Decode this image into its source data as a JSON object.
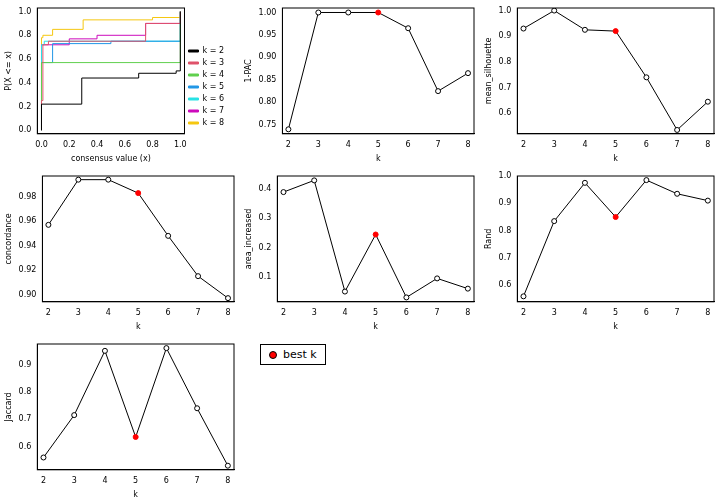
{
  "chart_data": [
    {
      "type": "line",
      "x_label": "consensus value (x)",
      "y_label": "P(X <= x)",
      "grid": false,
      "legend": "right",
      "xlim": [
        -0.03,
        1.03
      ],
      "ylim": [
        -0.03,
        1.03
      ],
      "xticks": [
        {
          "value": 0,
          "label": "0.0"
        },
        {
          "value": 0.2,
          "label": "0.2"
        },
        {
          "value": 0.4,
          "label": "0.4"
        },
        {
          "value": 0.6,
          "label": "0.6"
        },
        {
          "value": 0.8,
          "label": "0.8"
        },
        {
          "value": 1,
          "label": "1.0"
        }
      ],
      "yticks": [
        {
          "value": 0,
          "label": "0.0"
        },
        {
          "value": 0.2,
          "label": "0.2"
        },
        {
          "value": 0.4,
          "label": "0.4"
        },
        {
          "value": 0.6,
          "label": "0.6"
        },
        {
          "value": 0.8,
          "label": "0.8"
        },
        {
          "value": 1,
          "label": "1.0"
        }
      ],
      "line_style": "step",
      "series": [
        {
          "name": "k = 2",
          "color": "#000000",
          "x": [
            0,
            0,
            0.29,
            0.7,
            0.97,
            1
          ],
          "values": [
            0,
            0.22,
            0.44,
            0.48,
            0.5,
            1
          ]
        },
        {
          "name": "k = 3",
          "color": "#DF536B",
          "x": [
            0,
            0,
            0.01,
            0.05,
            0.75,
            1
          ],
          "values": [
            0,
            0.25,
            0.72,
            0.75,
            0.9,
            1
          ]
        },
        {
          "name": "k = 4",
          "color": "#61D04F",
          "x": [
            0,
            0,
            1
          ],
          "values": [
            0,
            0.57,
            1
          ]
        },
        {
          "name": "k = 5",
          "color": "#2297E6",
          "x": [
            0,
            0,
            0.08,
            0.5,
            1
          ],
          "values": [
            0,
            0.57,
            0.73,
            0.75,
            1
          ]
        },
        {
          "name": "k = 6",
          "color": "#28E2E5",
          "x": [
            0,
            0,
            0.02,
            1
          ],
          "values": [
            0,
            0.72,
            0.75,
            1
          ]
        },
        {
          "name": "k = 7",
          "color": "#CD0BBC",
          "x": [
            0,
            0,
            0.2,
            0.4,
            0.75,
            1
          ],
          "values": [
            0,
            0.72,
            0.77,
            0.8,
            0.9,
            1
          ]
        },
        {
          "name": "k = 8",
          "color": "#F5C710",
          "x": [
            0,
            0,
            0.01,
            0.08,
            0.3,
            0.8,
            1
          ],
          "values": [
            0,
            0.78,
            0.8,
            0.85,
            0.93,
            0.95,
            1
          ]
        }
      ]
    },
    {
      "type": "line",
      "x_label": "k",
      "y_label": "1-PAC",
      "grid": false,
      "marker": "circle",
      "color": "#000000",
      "x": [
        2,
        3,
        4,
        5,
        6,
        7,
        8
      ],
      "values": [
        0.74,
        1.0,
        1.0,
        1.0,
        0.965,
        0.825,
        0.865
      ],
      "colors": [
        "#000000",
        "#000000",
        "#000000",
        "#FF0000",
        "#000000",
        "#000000",
        "#000000"
      ],
      "xlim": [
        1.8,
        8.2
      ],
      "xticks": [
        2,
        3,
        4,
        5,
        6,
        7,
        8
      ],
      "ylim": [
        0.73,
        1.01
      ],
      "yticks": [
        0.75,
        {
          "value": 0.8,
          "label": "0.80"
        },
        0.85,
        {
          "value": 0.9,
          "label": "0.90"
        },
        0.95,
        {
          "value": 1,
          "label": "1.00"
        }
      ]
    },
    {
      "type": "line",
      "x_label": "k",
      "y_label": "mean_silhouette",
      "grid": false,
      "marker": "circle",
      "color": "#000000",
      "x": [
        2,
        3,
        4,
        5,
        6,
        7,
        8
      ],
      "values": [
        0.93,
        1.0,
        0.925,
        0.92,
        0.74,
        0.535,
        0.645
      ],
      "colors": [
        "#000000",
        "#000000",
        "#000000",
        "#FF0000",
        "#000000",
        "#000000",
        "#000000"
      ],
      "xlim": [
        1.8,
        8.2
      ],
      "xticks": [
        2,
        3,
        4,
        5,
        6,
        7,
        8
      ],
      "ylim": [
        0.52,
        1.01
      ],
      "yticks": [
        0.6,
        0.7,
        0.8,
        0.9,
        {
          "value": 1,
          "label": "1.0"
        }
      ]
    },
    {
      "type": "line",
      "x_label": "k",
      "y_label": "concordance",
      "grid": false,
      "marker": "circle",
      "color": "#000000",
      "x": [
        2,
        3,
        4,
        5,
        6,
        7,
        8
      ],
      "values": [
        0.957,
        0.994,
        0.994,
        0.983,
        0.948,
        0.915,
        0.897
      ],
      "colors": [
        "#000000",
        "#000000",
        "#000000",
        "#FF0000",
        "#000000",
        "#000000",
        "#000000"
      ],
      "xlim": [
        1.8,
        8.2
      ],
      "xticks": [
        2,
        3,
        4,
        5,
        6,
        7,
        8
      ],
      "ylim": [
        0.894,
        0.997
      ],
      "yticks": [
        {
          "value": 0.9,
          "label": "0.90"
        },
        0.92,
        0.94,
        0.96,
        0.98
      ]
    },
    {
      "type": "line",
      "x_label": "k",
      "y_label": "area_increased",
      "grid": false,
      "marker": "circle",
      "color": "#000000",
      "x": [
        2,
        3,
        4,
        5,
        6,
        7,
        8
      ],
      "values": [
        0.39,
        0.43,
        0.05,
        0.245,
        0.03,
        0.095,
        0.06
      ],
      "colors": [
        "#000000",
        "#000000",
        "#000000",
        "#FF0000",
        "#000000",
        "#000000",
        "#000000"
      ],
      "xlim": [
        1.8,
        8.2
      ],
      "xticks": [
        2,
        3,
        4,
        5,
        6,
        7,
        8
      ],
      "ylim": [
        0.015,
        0.445
      ],
      "yticks": [
        0.1,
        0.2,
        0.3,
        0.4
      ]
    },
    {
      "type": "line",
      "x_label": "k",
      "y_label": "Rand",
      "grid": false,
      "marker": "circle",
      "color": "#000000",
      "x": [
        2,
        3,
        4,
        5,
        6,
        7,
        8
      ],
      "values": [
        0.56,
        0.835,
        0.975,
        0.85,
        0.985,
        0.935,
        0.91
      ],
      "colors": [
        "#000000",
        "#000000",
        "#000000",
        "#FF0000",
        "#000000",
        "#000000",
        "#000000"
      ],
      "xlim": [
        1.8,
        8.2
      ],
      "xticks": [
        2,
        3,
        4,
        5,
        6,
        7,
        8
      ],
      "ylim": [
        0.54,
        1.0
      ],
      "yticks": [
        0.6,
        0.7,
        0.8,
        0.9,
        {
          "value": 1,
          "label": "1.0"
        }
      ]
    },
    {
      "type": "line",
      "x_label": "k",
      "y_label": "Jaccard",
      "grid": false,
      "marker": "circle",
      "color": "#000000",
      "x": [
        2,
        3,
        4,
        5,
        6,
        7,
        8
      ],
      "values": [
        0.56,
        0.715,
        0.95,
        0.635,
        0.96,
        0.74,
        0.53
      ],
      "colors": [
        "#000000",
        "#000000",
        "#000000",
        "#FF0000",
        "#000000",
        "#000000",
        "#000000"
      ],
      "xlim": [
        1.8,
        8.2
      ],
      "xticks": [
        2,
        3,
        4,
        5,
        6,
        7,
        8
      ],
      "ylim": [
        0.515,
        0.975
      ],
      "yticks": [
        0.6,
        0.7,
        0.8,
        0.9
      ]
    },
    {
      "type": "legend",
      "series": [
        {
          "name": "best k",
          "color": "#FF0000",
          "marker": "circle"
        }
      ]
    }
  ]
}
